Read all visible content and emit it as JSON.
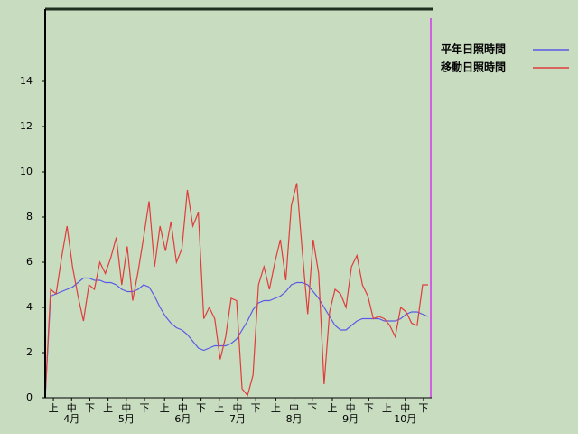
{
  "chart_data": {
    "type": "line",
    "x": [
      0,
      3,
      6,
      9,
      12,
      15,
      18,
      21,
      24,
      27,
      30,
      33,
      36,
      39,
      42,
      45,
      48,
      51,
      54,
      57,
      60,
      63,
      66,
      69,
      72,
      75,
      78,
      81,
      84,
      87,
      90,
      93,
      96,
      99,
      102,
      105,
      108,
      111,
      114,
      117,
      120,
      123,
      126,
      129,
      132,
      135,
      138,
      141,
      144,
      147,
      150,
      153,
      156,
      159,
      162,
      165,
      168,
      171,
      174,
      177,
      180,
      183,
      186,
      189,
      192,
      195,
      198,
      201,
      204,
      207,
      210
    ],
    "series": [
      {
        "name": "平年日照時間",
        "color": "#5a5ae6",
        "values": [
          0,
          4.5,
          4.6,
          4.7,
          4.8,
          4.9,
          5.1,
          5.3,
          5.3,
          5.2,
          5.2,
          5.1,
          5.1,
          5.0,
          4.8,
          4.7,
          4.7,
          4.8,
          5.0,
          4.9,
          4.5,
          4.0,
          3.6,
          3.3,
          3.1,
          3.0,
          2.8,
          2.5,
          2.2,
          2.1,
          2.2,
          2.3,
          2.3,
          2.3,
          2.4,
          2.6,
          3.0,
          3.4,
          3.9,
          4.2,
          4.3,
          4.3,
          4.4,
          4.5,
          4.7,
          5.0,
          5.1,
          5.1,
          5.0,
          4.7,
          4.4,
          4.0,
          3.6,
          3.2,
          3.0,
          3.0,
          3.2,
          3.4,
          3.5,
          3.5,
          3.5,
          3.5,
          3.4,
          3.4,
          3.4,
          3.5,
          3.7,
          3.8,
          3.8,
          3.7,
          3.6
        ]
      },
      {
        "name": "移動日照時間",
        "color": "#e03c3c",
        "values": [
          0,
          4.8,
          4.6,
          6.2,
          7.6,
          5.8,
          4.5,
          3.4,
          5.0,
          4.8,
          6.0,
          5.5,
          6.2,
          7.1,
          5.0,
          6.7,
          4.3,
          5.6,
          7.1,
          8.7,
          5.8,
          7.6,
          6.5,
          7.8,
          6.0,
          6.6,
          9.2,
          7.6,
          8.2,
          3.5,
          4.0,
          3.5,
          1.7,
          2.7,
          4.4,
          4.3,
          0.4,
          0.1,
          1.0,
          5.0,
          5.8,
          4.8,
          6.0,
          7.0,
          5.2,
          8.5,
          9.5,
          6.5,
          3.7,
          7.0,
          5.5,
          0.6,
          3.8,
          4.8,
          4.6,
          4.0,
          5.8,
          6.3,
          5.0,
          4.5,
          3.5,
          3.6,
          3.5,
          3.2,
          2.7,
          4.0,
          3.8,
          3.3,
          3.2,
          5.0,
          5.0
        ]
      }
    ],
    "xlim": [
      0,
      212
    ],
    "ylim": [
      0,
      17.2
    ],
    "yticks": [
      0,
      2,
      4,
      6,
      8,
      10,
      12,
      14
    ],
    "xticks": [
      {
        "value": 4.5,
        "label": "上"
      },
      {
        "value": 14.5,
        "label": "中"
      },
      {
        "value": 24.5,
        "label": "下"
      },
      {
        "value": 34.5,
        "label": "上"
      },
      {
        "value": 44.5,
        "label": "中"
      },
      {
        "value": 54.5,
        "label": "下"
      },
      {
        "value": 65.5,
        "label": "上"
      },
      {
        "value": 75.5,
        "label": "中"
      },
      {
        "value": 85.5,
        "label": "下"
      },
      {
        "value": 95.5,
        "label": "上"
      },
      {
        "value": 105.5,
        "label": "中"
      },
      {
        "value": 115.5,
        "label": "下"
      },
      {
        "value": 126.5,
        "label": "上"
      },
      {
        "value": 136.5,
        "label": "中"
      },
      {
        "value": 146.5,
        "label": "下"
      },
      {
        "value": 157.5,
        "label": "上"
      },
      {
        "value": 167.5,
        "label": "中"
      },
      {
        "value": 177.5,
        "label": "下"
      },
      {
        "value": 187.5,
        "label": "上"
      },
      {
        "value": 197.5,
        "label": "中"
      },
      {
        "value": 207.5,
        "label": "下"
      }
    ],
    "month_ticks": [
      {
        "value": 14.5,
        "label": "4月"
      },
      {
        "value": 44.5,
        "label": "5月"
      },
      {
        "value": 75.5,
        "label": "6月"
      },
      {
        "value": 105.5,
        "label": "7月"
      },
      {
        "value": 136.5,
        "label": "8月"
      },
      {
        "value": 167.5,
        "label": "9月"
      },
      {
        "value": 197.5,
        "label": "10月"
      }
    ],
    "legend": "right"
  }
}
